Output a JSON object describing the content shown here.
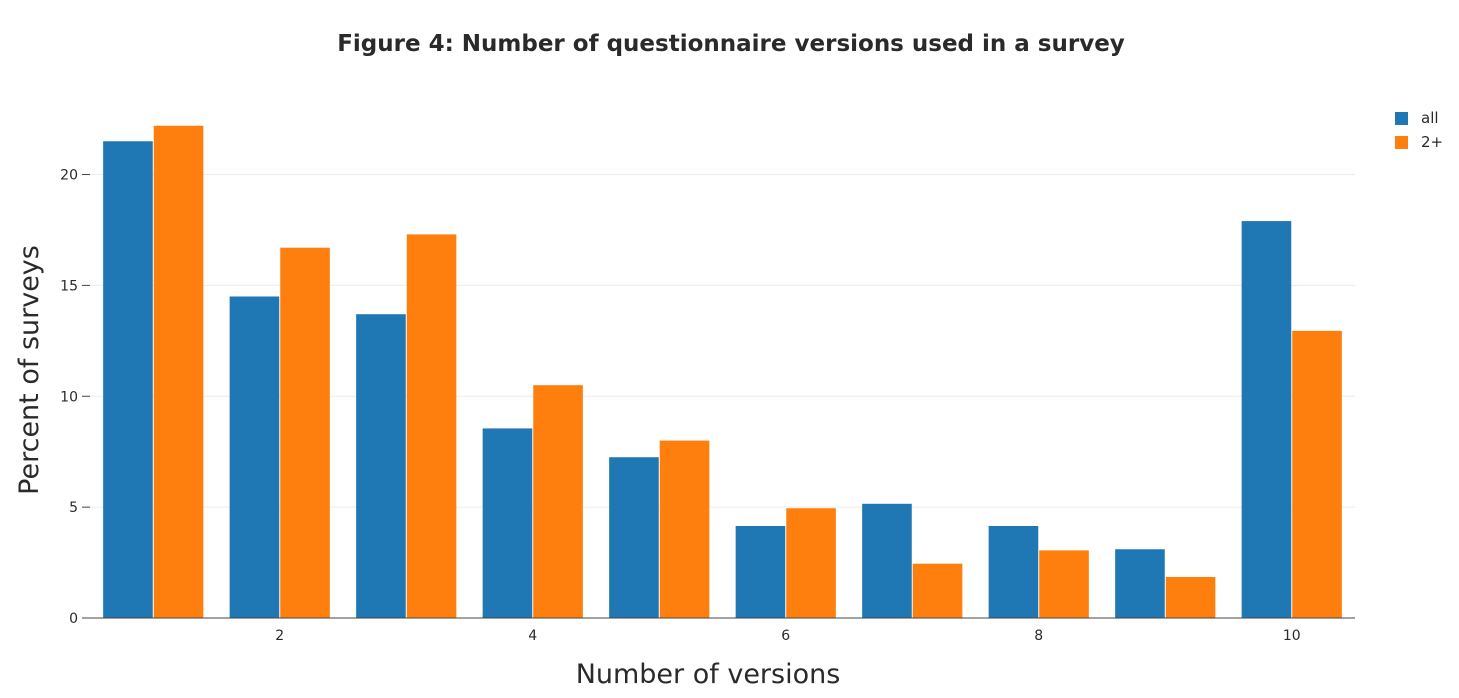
{
  "chart_data": {
    "type": "bar",
    "title": "Figure 4: Number of questionnaire versions used in a survey",
    "xlabel": "Number of versions",
    "ylabel": "Percent of surveys",
    "x": [
      1,
      2,
      3,
      4,
      5,
      6,
      7,
      8,
      9,
      10
    ],
    "x_ticks": [
      2,
      4,
      6,
      8,
      10
    ],
    "y_ticks": [
      0,
      5,
      10,
      15,
      20
    ],
    "ylim": [
      0,
      23
    ],
    "grid": true,
    "legend_position": "top-right",
    "series": [
      {
        "name": "all",
        "color": "#1f77b4",
        "values": [
          21.5,
          14.5,
          13.7,
          8.55,
          7.25,
          4.15,
          5.15,
          4.15,
          3.1,
          17.9
        ]
      },
      {
        "name": "2+",
        "color": "#ff7f0e",
        "values": [
          22.2,
          16.7,
          17.3,
          10.5,
          8.0,
          4.95,
          2.45,
          3.05,
          1.85,
          12.95
        ]
      }
    ]
  }
}
